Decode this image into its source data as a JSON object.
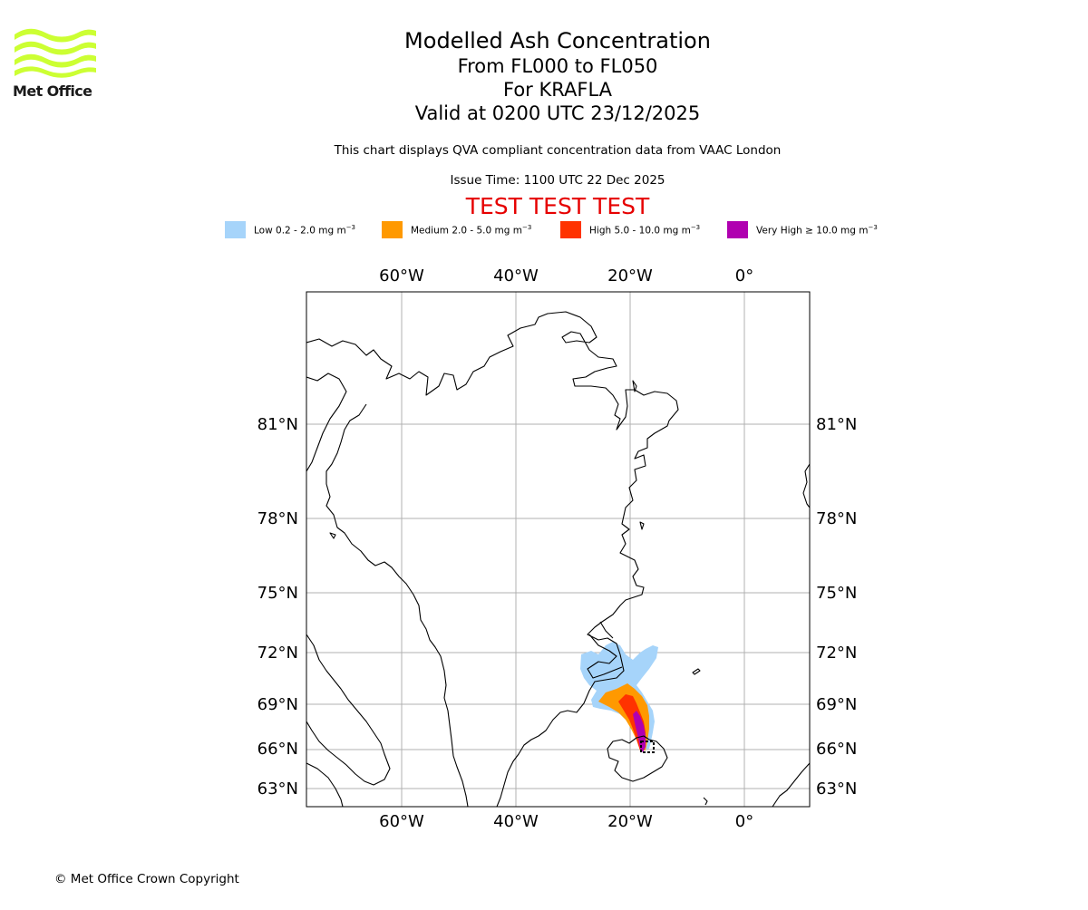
{
  "logo": {
    "text": "Met Office",
    "color": "#ccff33"
  },
  "title": {
    "line1": "Modelled Ash Concentration",
    "line2": "From FL000 to FL050",
    "line3": "For KRAFLA",
    "line4": "Valid at 0200 UTC 23/12/2025"
  },
  "note": "This chart displays QVA compliant concentration data from VAAC London",
  "issue_time": "Issue Time: 1100 UTC 22 Dec 2025",
  "test_banner": "TEST TEST TEST",
  "legend": [
    {
      "label": "Low 0.2 - 2.0 mg m",
      "color": "#a6d4fa"
    },
    {
      "label": "Medium 2.0 - 5.0 mg m",
      "color": "#ff9900"
    },
    {
      "label": "High 5.0 - 10.0 mg m",
      "color": "#ff3300"
    },
    {
      "label": "Very High ≥ 10.0 mg m",
      "color": "#b000b0"
    }
  ],
  "unit_exponent": "−3",
  "map": {
    "lon_labels": [
      "60°W",
      "40°W",
      "20°W",
      "0°"
    ],
    "lat_labels": [
      "81°N",
      "78°N",
      "75°N",
      "72°N",
      "69°N",
      "66°N",
      "63°N"
    ],
    "volcano": "KRAFLA"
  },
  "copyright": "© Met Office Crown Copyright"
}
